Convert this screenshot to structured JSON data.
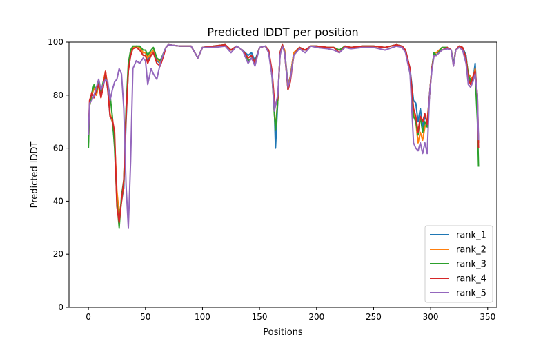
{
  "chart_data": {
    "type": "line",
    "title": "Predicted lDDT per position",
    "xlabel": "Positions",
    "ylabel": "Predicted lDDT",
    "xlim": [
      -17,
      358
    ],
    "ylim": [
      0,
      100
    ],
    "xticks": [
      0,
      50,
      100,
      150,
      200,
      250,
      300,
      350
    ],
    "yticks": [
      0,
      20,
      40,
      60,
      80,
      100
    ],
    "grid": false,
    "legend_position": "bottom-right",
    "x": [
      0,
      1,
      3,
      5,
      7,
      9,
      11,
      13,
      15,
      17,
      19,
      21,
      23,
      25,
      27,
      29,
      31,
      33,
      35,
      37,
      39,
      42,
      45,
      48,
      50,
      52,
      55,
      57,
      60,
      63,
      66,
      68,
      70,
      80,
      90,
      96,
      100,
      110,
      120,
      125,
      130,
      135,
      140,
      143,
      146,
      150,
      155,
      158,
      161,
      163,
      164,
      166,
      168,
      170,
      172,
      175,
      177,
      180,
      185,
      190,
      195,
      200,
      210,
      215,
      220,
      225,
      230,
      240,
      250,
      260,
      270,
      275,
      278,
      282,
      285,
      287,
      289,
      291,
      293,
      295,
      297,
      299,
      301,
      303,
      305,
      310,
      315,
      318,
      320,
      322,
      325,
      328,
      331,
      333,
      335,
      337,
      339,
      341,
      342
    ],
    "series": [
      {
        "name": "rank_1",
        "color": "#1f77b4",
        "values": [
          62,
          76,
          80,
          83,
          80,
          84,
          80,
          84,
          88,
          82,
          72,
          70,
          62,
          42,
          33,
          40,
          45,
          70,
          90,
          95,
          98,
          98.5,
          98,
          96,
          96,
          93,
          96,
          97,
          93,
          92,
          96,
          98,
          99,
          98.5,
          98.5,
          94,
          98,
          98.5,
          99,
          97,
          98.5,
          97,
          95,
          96,
          93,
          98,
          98.5,
          97,
          88,
          75,
          60,
          78,
          96,
          99,
          97,
          84,
          87,
          96,
          98,
          97,
          98.5,
          98.5,
          98,
          98,
          97,
          98.5,
          98,
          98.5,
          98.5,
          98,
          99,
          98.5,
          97,
          90,
          78,
          77,
          70,
          75,
          68,
          72,
          70,
          80,
          90,
          96,
          96,
          98,
          98,
          97,
          92,
          97,
          98.5,
          98,
          95,
          87,
          86,
          85,
          92,
          75,
          62
        ]
      },
      {
        "name": "rank_2",
        "color": "#ff7f0e",
        "values": [
          62,
          76,
          80,
          83,
          80,
          84,
          79,
          85,
          89,
          83,
          73,
          70,
          63,
          44,
          35,
          40,
          47,
          72,
          90,
          96,
          98,
          98.5,
          98,
          96,
          96,
          94,
          96,
          97,
          94,
          92,
          96,
          98,
          99,
          98.5,
          98.5,
          94,
          98,
          98.5,
          99,
          97,
          98.5,
          97,
          94,
          95,
          92,
          98,
          98.5,
          97,
          88,
          73,
          68,
          78,
          96,
          99,
          97,
          83,
          87,
          96,
          98,
          97,
          98.5,
          98.5,
          98,
          98,
          97,
          98.5,
          98,
          98.5,
          98.5,
          98,
          99,
          98.5,
          97,
          89,
          74,
          70,
          62,
          66,
          63,
          68,
          70,
          80,
          90,
          96,
          96,
          98,
          98,
          97,
          92,
          97,
          98.5,
          98,
          94,
          88,
          87,
          86,
          90,
          78,
          62
        ]
      },
      {
        "name": "rank_3",
        "color": "#2ca02c",
        "values": [
          60,
          76,
          81,
          84,
          81,
          85,
          81,
          85,
          87,
          84,
          80,
          72,
          60,
          40,
          30,
          42,
          48,
          75,
          92,
          97,
          98.5,
          98.5,
          98.5,
          97,
          97,
          95,
          97,
          98,
          94,
          93,
          96,
          98,
          99,
          98.5,
          98.5,
          94,
          98,
          98.5,
          99,
          97,
          98.5,
          97,
          93,
          94,
          92,
          98,
          98.5,
          97,
          87,
          73,
          67,
          78,
          96,
          99,
          96,
          82,
          86,
          95,
          98,
          97,
          98.5,
          98.5,
          98,
          98,
          97,
          98.5,
          98,
          98.5,
          98.5,
          98,
          99,
          98.5,
          97,
          88,
          72,
          70,
          65,
          72,
          66,
          70,
          68,
          80,
          90,
          96,
          95,
          98,
          98,
          97,
          92,
          97,
          98.5,
          98,
          94,
          88,
          85,
          86,
          88,
          70,
          53
        ]
      },
      {
        "name": "rank_4",
        "color": "#d62728",
        "values": [
          65,
          78,
          81,
          79,
          82,
          84,
          79,
          83,
          89,
          82,
          72,
          71,
          66,
          38,
          32,
          40,
          48,
          72,
          89,
          95,
          97.5,
          98,
          97,
          95,
          95,
          92,
          95,
          96,
          92,
          91,
          95,
          98,
          99,
          98.5,
          98.5,
          94,
          98,
          98.5,
          99,
          97,
          98.5,
          97,
          94,
          95,
          92,
          98,
          98.5,
          97,
          89,
          78,
          76,
          79,
          96,
          99,
          96,
          82,
          85,
          95,
          98,
          97,
          98.5,
          98.5,
          98,
          98,
          96,
          98.5,
          98,
          98.5,
          98.5,
          98,
          99,
          98.5,
          97,
          90,
          75,
          72,
          66,
          72,
          70,
          73,
          69,
          80,
          90,
          95,
          95,
          97,
          98,
          97,
          91,
          97,
          98.5,
          98,
          94,
          86,
          84,
          87,
          89,
          80,
          60
        ]
      },
      {
        "name": "rank_5",
        "color": "#9467bd",
        "values": [
          65,
          77,
          78,
          80,
          83,
          86,
          82,
          84,
          86,
          85,
          78,
          82,
          85,
          86,
          90,
          88,
          75,
          46,
          30,
          55,
          90,
          93,
          92,
          94,
          93,
          84,
          90,
          88,
          86,
          92,
          96,
          98,
          99,
          98.5,
          98.5,
          94,
          98,
          98,
          98.5,
          96,
          98.5,
          97,
          92,
          94,
          91,
          98,
          98.5,
          96,
          87,
          74,
          76,
          80,
          95,
          98.5,
          96,
          83,
          86,
          95,
          97.5,
          96,
          98.5,
          98,
          97.5,
          97,
          96,
          98,
          97.5,
          98,
          98,
          97,
          98.5,
          98,
          96,
          88,
          62,
          60,
          59,
          62,
          58,
          62,
          58,
          80,
          89,
          95,
          95,
          97,
          97.5,
          97,
          91,
          97,
          98,
          97,
          92,
          84,
          83,
          85,
          88,
          80,
          63
        ]
      }
    ]
  }
}
